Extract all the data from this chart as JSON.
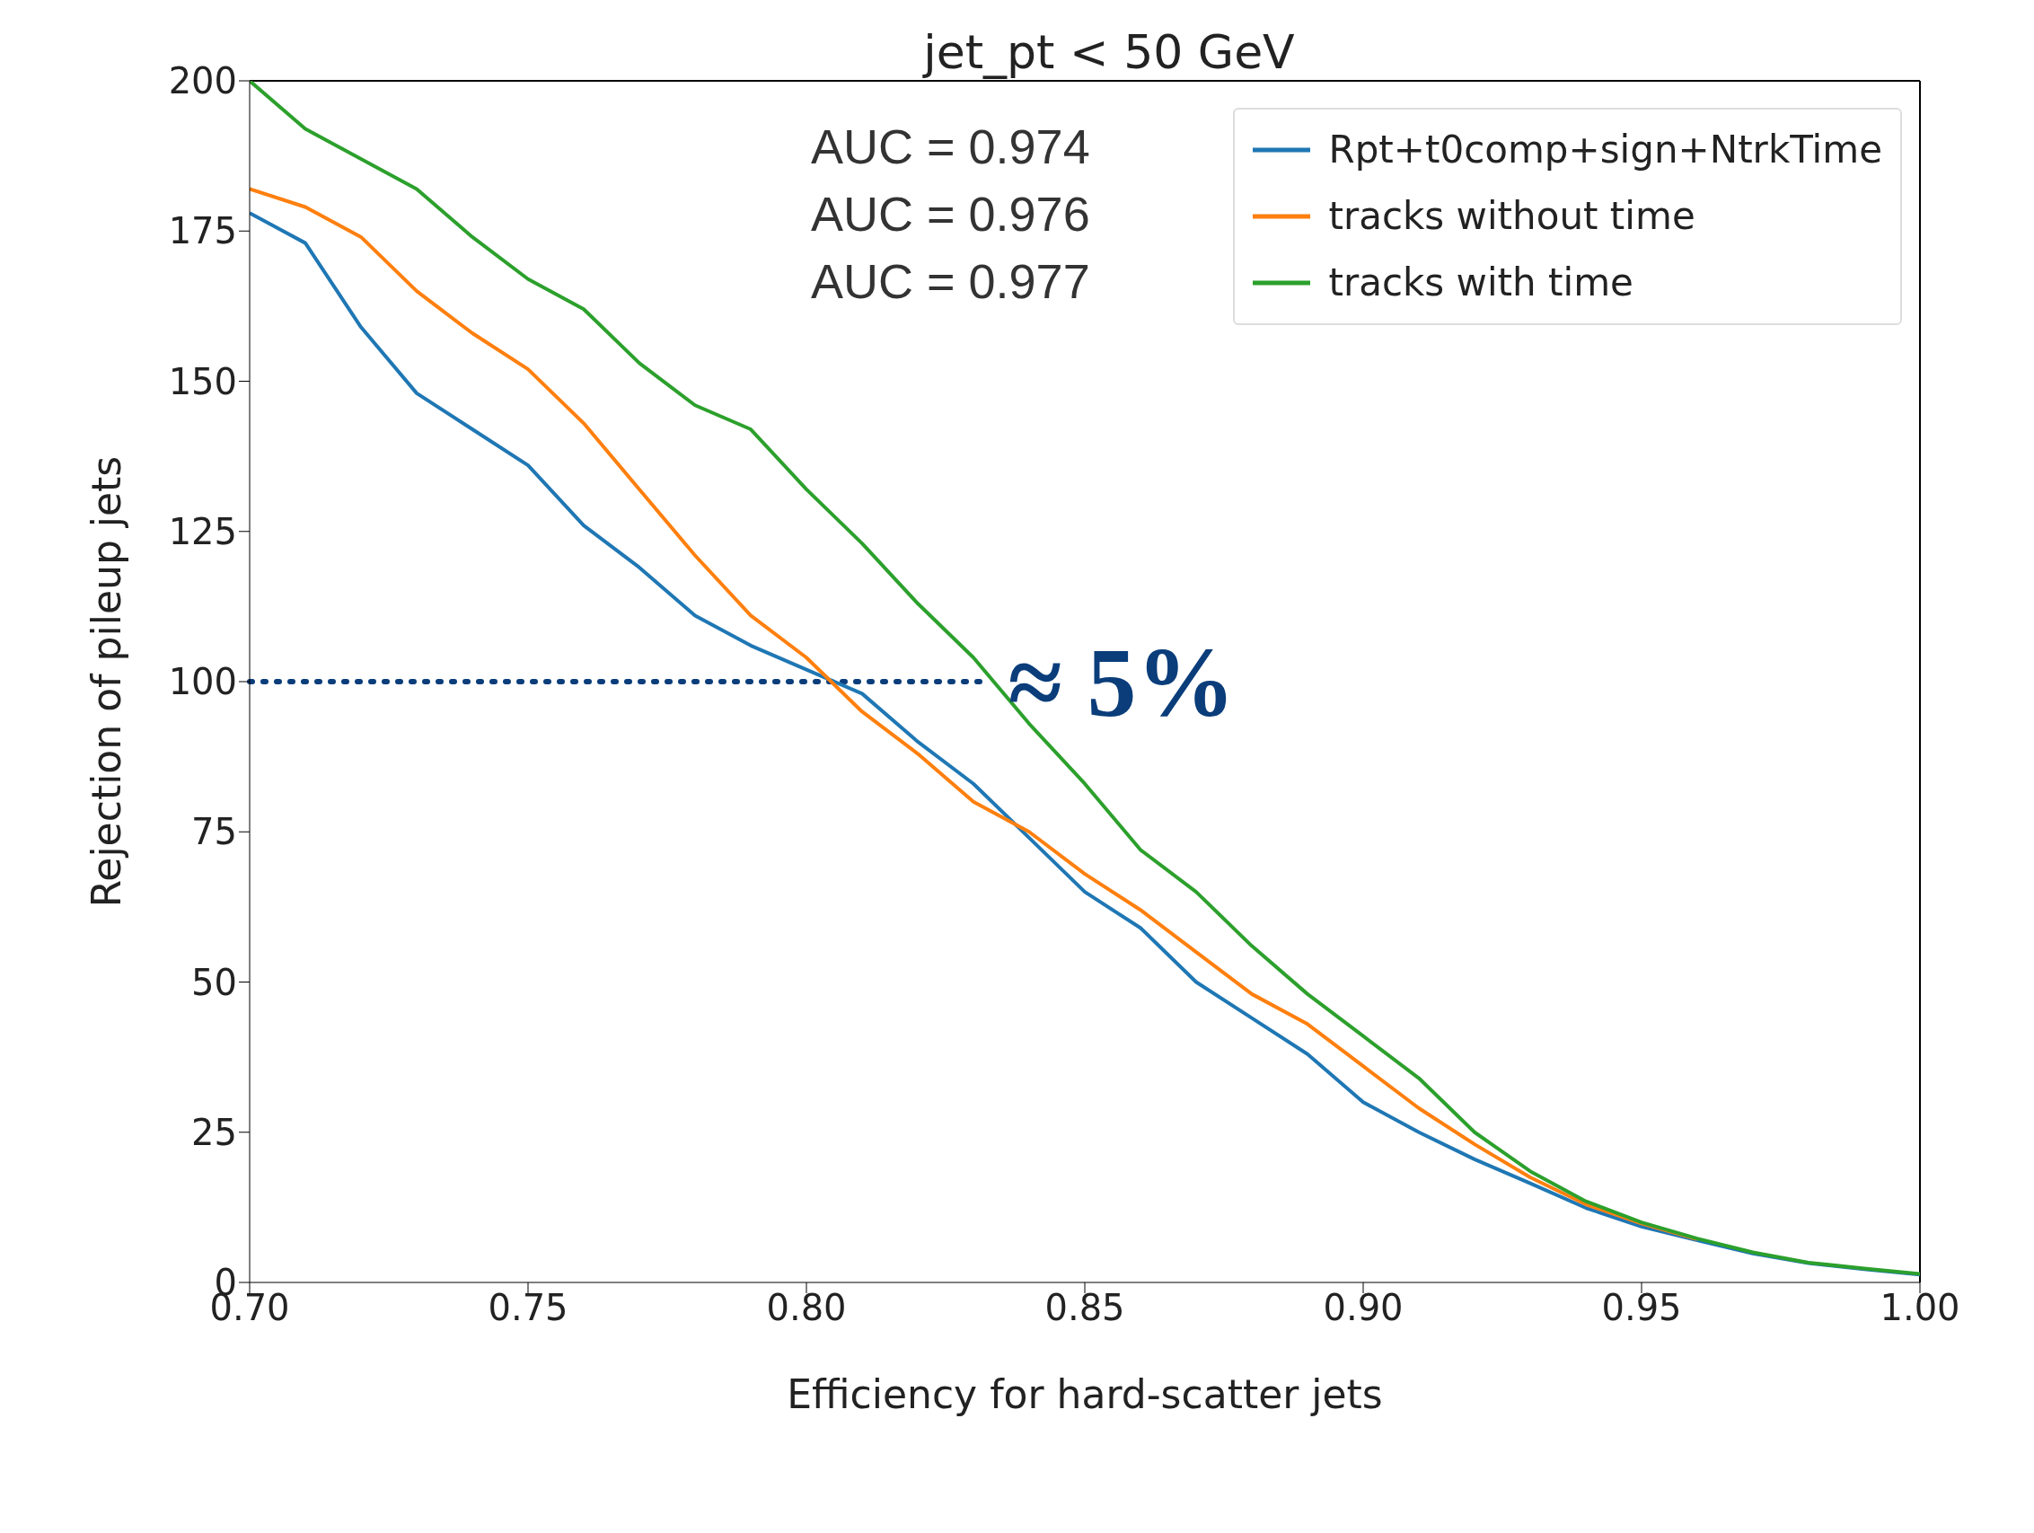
{
  "chart_data": {
    "type": "line",
    "title": "jet_pt < 50 GeV",
    "xlabel": "Efficiency for hard-scatter jets",
    "ylabel": "Rejection of pileup jets",
    "x": [
      0.7,
      0.71,
      0.72,
      0.73,
      0.74,
      0.75,
      0.76,
      0.77,
      0.78,
      0.79,
      0.8,
      0.81,
      0.82,
      0.83,
      0.84,
      0.85,
      0.86,
      0.87,
      0.88,
      0.89,
      0.9,
      0.91,
      0.92,
      0.93,
      0.94,
      0.95,
      0.96,
      0.97,
      0.98,
      0.99,
      1.0
    ],
    "series": [
      {
        "name": "Rpt+t0comp+sign+NtrkTime",
        "color": "#1f77b4",
        "values": [
          178,
          173,
          159,
          148,
          142,
          136,
          126,
          119,
          111,
          106,
          102,
          98,
          90,
          83,
          74,
          65,
          59,
          50,
          44,
          38,
          30,
          25,
          20.5,
          16.5,
          12.4,
          9.3,
          7,
          4.8,
          3.2,
          2.2,
          1.3
        ]
      },
      {
        "name": "tracks without time",
        "color": "#ff7f0e",
        "values": [
          182,
          179,
          174,
          165,
          158,
          152,
          143,
          132,
          121,
          111,
          104,
          95,
          88,
          80,
          75,
          68,
          62,
          55,
          48,
          43,
          36,
          29,
          23,
          17.5,
          13,
          9.8,
          7.2,
          null,
          null,
          null,
          null
        ]
      },
      {
        "name": "tracks with time",
        "color": "#2ca02c",
        "values": [
          200,
          192,
          187,
          182,
          174,
          167,
          162,
          153,
          146,
          142,
          132,
          123,
          113,
          104,
          93,
          83,
          72,
          65,
          56,
          48,
          41,
          34,
          25,
          18.5,
          13.5,
          10,
          7.3,
          5,
          3.3,
          2.3,
          1.4
        ]
      }
    ],
    "xlim": [
      0.7,
      1.0
    ],
    "xticks": [
      {
        "value": 0.7,
        "label": "0.70"
      },
      {
        "value": 0.75,
        "label": "0.75"
      },
      {
        "value": 0.8,
        "label": "0.80"
      },
      {
        "value": 0.85,
        "label": "0.85"
      },
      {
        "value": 0.9,
        "label": "0.90"
      },
      {
        "value": 0.95,
        "label": "0.95"
      },
      {
        "value": 1.0,
        "label": "1.00"
      }
    ],
    "ylim": [
      0,
      200
    ],
    "yticks": [
      0,
      25,
      50,
      75,
      100,
      125,
      150,
      175,
      200
    ],
    "ref_lines": [
      {
        "axis": "y",
        "value": 100,
        "color": "#0a3d7a",
        "line_style": "dotted"
      }
    ],
    "annotations": [
      "AUC = 0.974",
      "AUC = 0.976",
      "AUC = 0.977",
      {
        "text": "≈ 5%",
        "x": 0.833,
        "y": 100
      }
    ],
    "legend": "top right",
    "grid": false,
    "marker": "none",
    "line_style": "solid"
  }
}
